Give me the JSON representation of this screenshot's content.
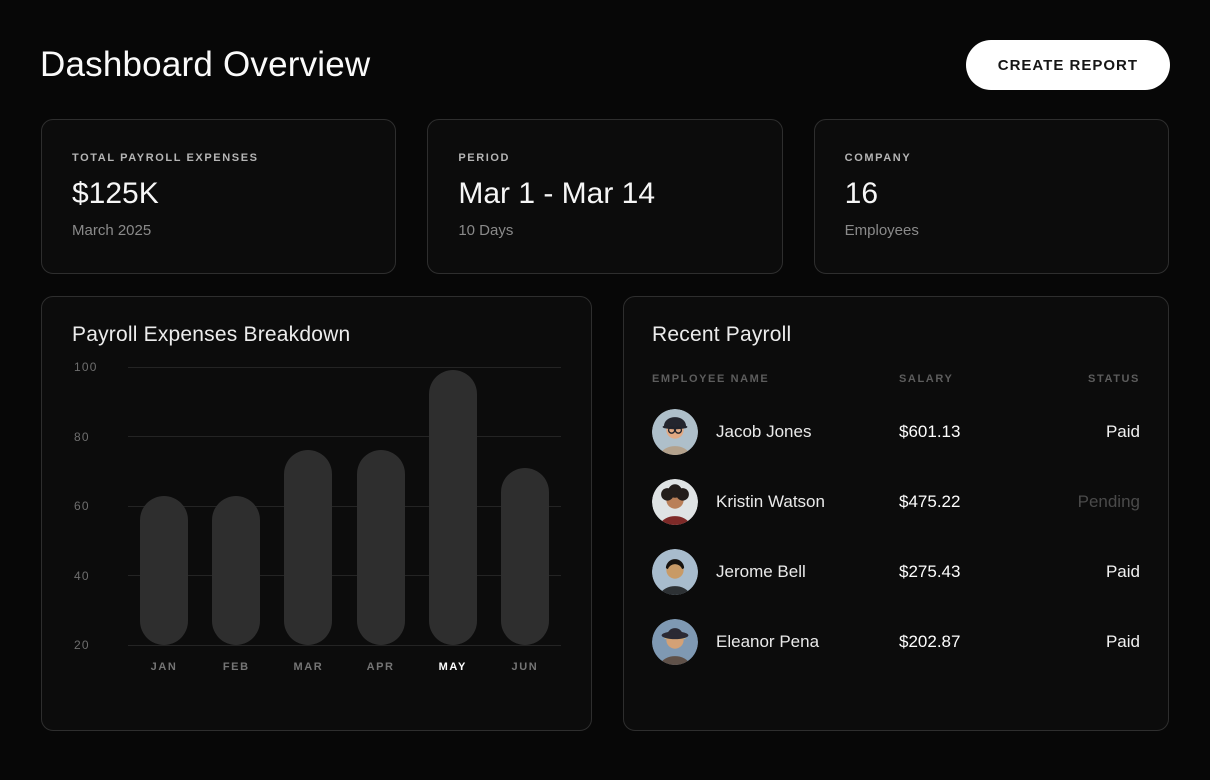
{
  "header": {
    "title": "Dashboard Overview",
    "create_report_label": "CREATE REPORT"
  },
  "stats": [
    {
      "label": "TOTAL PAYROLL EXPENSES",
      "value": "$125K",
      "sub": "March 2025"
    },
    {
      "label": "PERIOD",
      "value": "Mar 1 - Mar 14",
      "sub": "10 Days"
    },
    {
      "label": "COMPANY",
      "value": "16",
      "sub": "Employees"
    }
  ],
  "chart_data": {
    "type": "bar",
    "title": "Payroll Expenses Breakdown",
    "categories": [
      "JAN",
      "FEB",
      "MAR",
      "APR",
      "MAY",
      "JUN"
    ],
    "values": [
      63,
      63,
      76,
      76,
      99,
      71
    ],
    "highlighted_category": "MAY",
    "y_ticks": [
      100,
      80,
      60,
      40,
      20
    ],
    "ylim": [
      20,
      100
    ],
    "grid": true,
    "bar_color": "#2e2e2e",
    "xlabel": "",
    "ylabel": ""
  },
  "payroll": {
    "title": "Recent Payroll",
    "columns": [
      "EMPLOYEE NAME",
      "SALARY",
      "STATUS"
    ],
    "rows": [
      {
        "name": "Jacob Jones",
        "salary": "$601.13",
        "status": "Paid",
        "avatar": {
          "bg": "#aebfca",
          "skin": "#e2a983",
          "shirt": "#b3a18c",
          "hair": "#d8b269",
          "hat": "#23252e",
          "hat_style": "beanie",
          "glasses": true
        }
      },
      {
        "name": "Kristin Watson",
        "salary": "$475.22",
        "status": "Pending",
        "avatar": {
          "bg": "#dfe3e4",
          "skin": "#b97f58",
          "shirt": "#7e2a28",
          "hair": "#231d1a",
          "hat": null,
          "hat_style": "curly",
          "glasses": false
        }
      },
      {
        "name": "Jerome Bell",
        "salary": "$275.43",
        "status": "Paid",
        "avatar": {
          "bg": "#a8bccd",
          "skin": "#c89a66",
          "shirt": "#2d3134",
          "hair": "#17130f",
          "hat": null,
          "hat_style": "short",
          "glasses": false
        }
      },
      {
        "name": "Eleanor Pena",
        "salary": "$202.87",
        "status": "Paid",
        "avatar": {
          "bg": "#7f99b3",
          "skin": "#d3a176",
          "shirt": "#5f5149",
          "hair": "#c8ad7e",
          "hat": "#2b2933",
          "hat_style": "brim",
          "glasses": false
        }
      }
    ]
  },
  "colors": {
    "page_bg": "#070707",
    "card_bg": "#0c0c0c",
    "card_border": "#2e2e2e",
    "accent_button_bg": "#ffffff",
    "accent_button_text": "#161616",
    "bar": "#2e2e2e",
    "gridline": "#242424",
    "status_paid": "#f2f2f2",
    "status_pending": "#4a4a4a"
  }
}
